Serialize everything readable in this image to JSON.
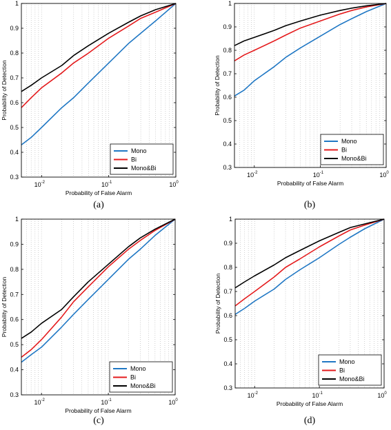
{
  "chart_data": [
    {
      "type": "line",
      "caption": "(a)",
      "xlabel": "Probability of False Alarm",
      "ylabel": "Probability of Detection",
      "xscale": "log",
      "xlim": [
        0.005,
        1
      ],
      "ylim": [
        0.3,
        1
      ],
      "xticks": [
        {
          "base": "10",
          "exp": "-2",
          "value": 0.01
        },
        {
          "base": "10",
          "exp": "-1",
          "value": 0.1
        },
        {
          "base": "10",
          "exp": "0",
          "value": 1
        }
      ],
      "yticks": [
        "0.3",
        "0.4",
        "0.5",
        "0.6",
        "0.7",
        "0.8",
        "0.9",
        "1"
      ],
      "grid": "x-minor-dotted",
      "legend_position": "bottom-right",
      "series": [
        {
          "name": "Mono",
          "color": "#1f77c4",
          "x": [
            0.005,
            0.007,
            0.01,
            0.02,
            0.03,
            0.05,
            0.1,
            0.2,
            0.3,
            0.5,
            1.0
          ],
          "y": [
            0.43,
            0.46,
            0.5,
            0.58,
            0.62,
            0.68,
            0.76,
            0.84,
            0.88,
            0.93,
            1.0
          ]
        },
        {
          "name": "Bi",
          "color": "#e41a1c",
          "x": [
            0.005,
            0.007,
            0.01,
            0.02,
            0.03,
            0.05,
            0.1,
            0.2,
            0.3,
            0.5,
            1.0
          ],
          "y": [
            0.58,
            0.62,
            0.66,
            0.72,
            0.76,
            0.8,
            0.86,
            0.91,
            0.94,
            0.965,
            1.0
          ]
        },
        {
          "name": "Mono&Bi",
          "color": "#000000",
          "x": [
            0.005,
            0.007,
            0.01,
            0.02,
            0.03,
            0.05,
            0.1,
            0.2,
            0.3,
            0.5,
            1.0
          ],
          "y": [
            0.645,
            0.67,
            0.7,
            0.75,
            0.79,
            0.83,
            0.88,
            0.925,
            0.95,
            0.975,
            1.0
          ]
        }
      ]
    },
    {
      "type": "line",
      "caption": "(b)",
      "xlabel": "Probability of False Alarm",
      "ylabel": "Probability of Detection",
      "xscale": "log",
      "xlim": [
        0.005,
        1
      ],
      "ylim": [
        0.3,
        1
      ],
      "xticks": [
        {
          "base": "10",
          "exp": "-2",
          "value": 0.01
        },
        {
          "base": "10",
          "exp": "-1",
          "value": 0.1
        },
        {
          "base": "10",
          "exp": "0",
          "value": 1
        }
      ],
      "yticks": [
        "0.3",
        "0.4",
        "0.5",
        "0.6",
        "0.7",
        "0.8",
        "0.9",
        "1"
      ],
      "grid": "x-minor-dotted",
      "legend_position": "bottom-right",
      "series": [
        {
          "name": "Mono",
          "color": "#1f77c4",
          "x": [
            0.005,
            0.007,
            0.01,
            0.02,
            0.03,
            0.05,
            0.1,
            0.2,
            0.3,
            0.5,
            1.0
          ],
          "y": [
            0.605,
            0.63,
            0.67,
            0.73,
            0.77,
            0.81,
            0.86,
            0.91,
            0.935,
            0.965,
            1.0
          ]
        },
        {
          "name": "Bi",
          "color": "#e41a1c",
          "x": [
            0.005,
            0.007,
            0.01,
            0.02,
            0.03,
            0.05,
            0.1,
            0.2,
            0.3,
            0.5,
            1.0
          ],
          "y": [
            0.755,
            0.78,
            0.8,
            0.84,
            0.865,
            0.895,
            0.925,
            0.955,
            0.97,
            0.985,
            1.0
          ]
        },
        {
          "name": "Mono&Bi",
          "color": "#000000",
          "x": [
            0.005,
            0.007,
            0.01,
            0.02,
            0.03,
            0.05,
            0.1,
            0.2,
            0.3,
            0.5,
            1.0
          ],
          "y": [
            0.82,
            0.84,
            0.855,
            0.885,
            0.905,
            0.925,
            0.95,
            0.97,
            0.98,
            0.99,
            1.0
          ]
        }
      ]
    },
    {
      "type": "line",
      "caption": "(c)",
      "xlabel": "Probability of False Alarm",
      "ylabel": "Probability of Detection",
      "xscale": "log",
      "xlim": [
        0.005,
        1
      ],
      "ylim": [
        0.3,
        1
      ],
      "xticks": [
        {
          "base": "10",
          "exp": "-2",
          "value": 0.01
        },
        {
          "base": "10",
          "exp": "-1",
          "value": 0.1
        },
        {
          "base": "10",
          "exp": "0",
          "value": 1
        }
      ],
      "yticks": [
        "0.3",
        "0.4",
        "0.5",
        "0.6",
        "0.7",
        "0.8",
        "0.9",
        "1"
      ],
      "grid": "x-minor-dotted",
      "legend_position": "bottom-right",
      "series": [
        {
          "name": "Mono",
          "color": "#1f77c4",
          "x": [
            0.005,
            0.007,
            0.01,
            0.02,
            0.03,
            0.05,
            0.1,
            0.2,
            0.3,
            0.5,
            1.0
          ],
          "y": [
            0.43,
            0.46,
            0.49,
            0.57,
            0.62,
            0.68,
            0.76,
            0.84,
            0.88,
            0.935,
            1.0
          ]
        },
        {
          "name": "Bi",
          "color": "#e41a1c",
          "x": [
            0.005,
            0.007,
            0.01,
            0.02,
            0.03,
            0.05,
            0.1,
            0.2,
            0.3,
            0.5,
            1.0
          ],
          "y": [
            0.45,
            0.48,
            0.52,
            0.61,
            0.67,
            0.73,
            0.81,
            0.88,
            0.915,
            0.955,
            1.0
          ]
        },
        {
          "name": "Mono&Bi",
          "color": "#000000",
          "x": [
            0.005,
            0.007,
            0.01,
            0.02,
            0.03,
            0.05,
            0.1,
            0.2,
            0.3,
            0.5,
            1.0
          ],
          "y": [
            0.525,
            0.55,
            0.585,
            0.64,
            0.69,
            0.75,
            0.82,
            0.89,
            0.925,
            0.96,
            1.0
          ]
        }
      ]
    },
    {
      "type": "line",
      "caption": "(d)",
      "xlabel": "Probability of False Alarm",
      "ylabel": "Probability of Detection",
      "xscale": "log",
      "xlim": [
        0.005,
        1
      ],
      "ylim": [
        0.3,
        1
      ],
      "xticks": [
        {
          "base": "10",
          "exp": "-2",
          "value": 0.01
        },
        {
          "base": "10",
          "exp": "-1",
          "value": 0.1
        },
        {
          "base": "10",
          "exp": "0",
          "value": 1
        }
      ],
      "yticks": [
        "0.3",
        "0.4",
        "0.5",
        "0.6",
        "0.7",
        "0.8",
        "0.9",
        "1"
      ],
      "grid": "x-minor-dotted",
      "legend_position": "bottom-right",
      "series": [
        {
          "name": "Mono",
          "color": "#1f77c4",
          "x": [
            0.005,
            0.007,
            0.01,
            0.02,
            0.03,
            0.05,
            0.1,
            0.2,
            0.3,
            0.5,
            1.0
          ],
          "y": [
            0.605,
            0.63,
            0.66,
            0.71,
            0.75,
            0.79,
            0.84,
            0.895,
            0.925,
            0.96,
            1.0
          ]
        },
        {
          "name": "Bi",
          "color": "#e41a1c",
          "x": [
            0.005,
            0.007,
            0.01,
            0.02,
            0.03,
            0.05,
            0.1,
            0.2,
            0.3,
            0.5,
            1.0
          ],
          "y": [
            0.64,
            0.67,
            0.7,
            0.76,
            0.8,
            0.835,
            0.885,
            0.93,
            0.955,
            0.975,
            1.0
          ]
        },
        {
          "name": "Mono&Bi",
          "color": "#000000",
          "x": [
            0.005,
            0.007,
            0.01,
            0.02,
            0.03,
            0.05,
            0.1,
            0.2,
            0.3,
            0.5,
            1.0
          ],
          "y": [
            0.715,
            0.74,
            0.765,
            0.81,
            0.84,
            0.87,
            0.91,
            0.945,
            0.965,
            0.98,
            1.0
          ]
        }
      ]
    }
  ]
}
